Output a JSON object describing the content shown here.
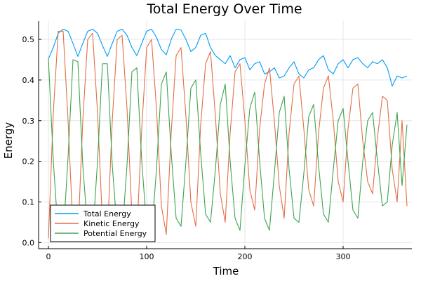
{
  "chart_data": {
    "type": "line",
    "title": "Total Energy Over Time",
    "xlabel": "Time",
    "ylabel": "Energy",
    "xlim": [
      -10,
      370
    ],
    "ylim": [
      -0.015,
      0.545
    ],
    "xticks": [
      0,
      100,
      200,
      300
    ],
    "xtick_labels": [
      "0",
      "100",
      "200",
      "300"
    ],
    "yticks": [
      0.0,
      0.1,
      0.2,
      0.3,
      0.4,
      0.5
    ],
    "ytick_labels": [
      "0.0",
      "0.1",
      "0.2",
      "0.3",
      "0.4",
      "0.5"
    ],
    "grid": true,
    "legend_position": "bottom-left",
    "x": [
      0,
      5,
      10,
      15,
      20,
      25,
      30,
      35,
      40,
      45,
      50,
      55,
      60,
      65,
      70,
      75,
      80,
      85,
      90,
      95,
      100,
      105,
      110,
      115,
      120,
      125,
      130,
      135,
      140,
      145,
      150,
      155,
      160,
      165,
      170,
      175,
      180,
      185,
      190,
      195,
      200,
      205,
      210,
      215,
      220,
      225,
      230,
      235,
      240,
      245,
      250,
      255,
      260,
      265,
      270,
      275,
      280,
      285,
      290,
      295,
      300,
      305,
      310,
      315,
      320,
      325,
      330,
      335,
      340,
      345,
      350,
      355,
      360,
      365
    ],
    "series": [
      {
        "name": "Total Energy",
        "color": "#009af9",
        "values": [
          0.452,
          0.48,
          0.515,
          0.525,
          0.52,
          0.49,
          0.458,
          0.49,
          0.52,
          0.525,
          0.515,
          0.485,
          0.458,
          0.49,
          0.52,
          0.525,
          0.51,
          0.48,
          0.46,
          0.49,
          0.52,
          0.525,
          0.505,
          0.475,
          0.462,
          0.5,
          0.525,
          0.523,
          0.5,
          0.47,
          0.48,
          0.51,
          0.515,
          0.48,
          0.46,
          0.45,
          0.44,
          0.46,
          0.43,
          0.45,
          0.455,
          0.425,
          0.44,
          0.445,
          0.415,
          0.42,
          0.43,
          0.405,
          0.41,
          0.43,
          0.445,
          0.415,
          0.405,
          0.425,
          0.43,
          0.45,
          0.46,
          0.425,
          0.415,
          0.44,
          0.45,
          0.43,
          0.45,
          0.455,
          0.44,
          0.43,
          0.445,
          0.44,
          0.45,
          0.43,
          0.385,
          0.41,
          0.405,
          0.41
        ]
      },
      {
        "name": "Kinetic Energy",
        "color": "#e26f46",
        "values": [
          0.01,
          0.32,
          0.52,
          0.52,
          0.3,
          0.03,
          0.01,
          0.3,
          0.5,
          0.515,
          0.32,
          0.05,
          0.015,
          0.3,
          0.5,
          0.51,
          0.33,
          0.07,
          0.02,
          0.28,
          0.48,
          0.5,
          0.33,
          0.09,
          0.02,
          0.27,
          0.46,
          0.48,
          0.31,
          0.1,
          0.04,
          0.29,
          0.44,
          0.47,
          0.31,
          0.12,
          0.05,
          0.27,
          0.42,
          0.44,
          0.3,
          0.13,
          0.08,
          0.28,
          0.39,
          0.43,
          0.3,
          0.14,
          0.06,
          0.27,
          0.39,
          0.41,
          0.28,
          0.13,
          0.09,
          0.27,
          0.38,
          0.41,
          0.3,
          0.15,
          0.1,
          0.28,
          0.38,
          0.39,
          0.25,
          0.15,
          0.12,
          0.26,
          0.36,
          0.35,
          0.18,
          0.1,
          0.3,
          0.09
        ]
      },
      {
        "name": "Potential Energy",
        "color": "#3da44e",
        "values": [
          0.452,
          0.2,
          0.02,
          0.01,
          0.21,
          0.45,
          0.445,
          0.19,
          0.03,
          0.015,
          0.2,
          0.44,
          0.44,
          0.19,
          0.03,
          0.02,
          0.19,
          0.42,
          0.43,
          0.2,
          0.04,
          0.02,
          0.18,
          0.39,
          0.42,
          0.22,
          0.06,
          0.04,
          0.2,
          0.38,
          0.4,
          0.22,
          0.07,
          0.05,
          0.18,
          0.34,
          0.39,
          0.2,
          0.06,
          0.03,
          0.19,
          0.33,
          0.37,
          0.2,
          0.06,
          0.03,
          0.17,
          0.32,
          0.36,
          0.18,
          0.06,
          0.05,
          0.17,
          0.31,
          0.34,
          0.19,
          0.07,
          0.05,
          0.18,
          0.3,
          0.33,
          0.2,
          0.08,
          0.06,
          0.2,
          0.3,
          0.32,
          0.2,
          0.09,
          0.1,
          0.24,
          0.32,
          0.14,
          0.29
        ]
      }
    ]
  }
}
